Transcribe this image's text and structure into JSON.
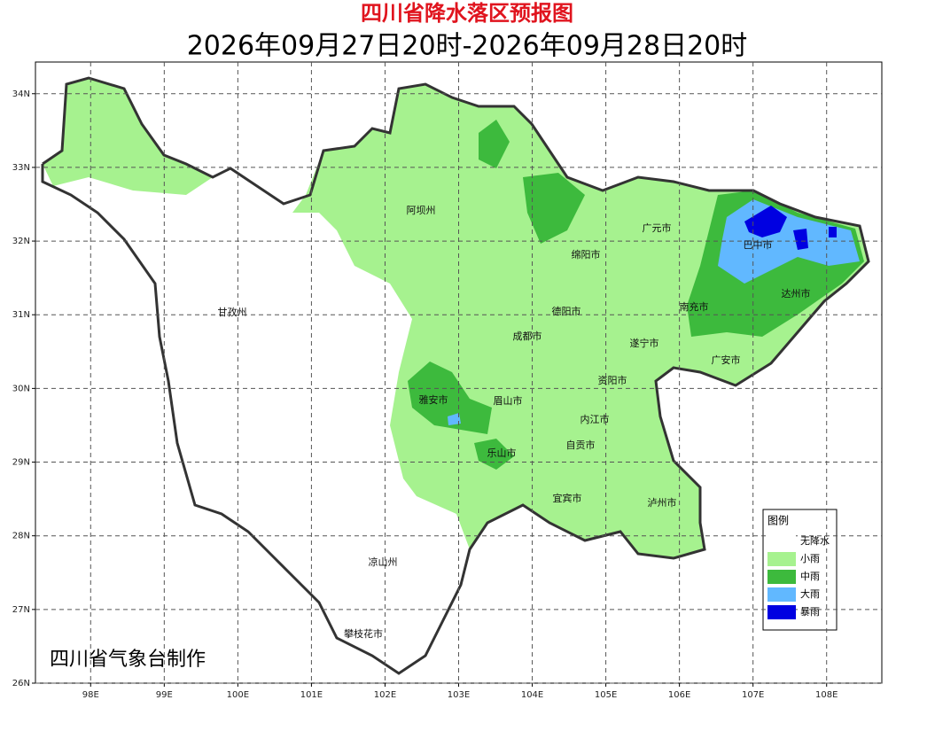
{
  "header": {
    "title": "四川省降水落区预报图",
    "subtitle": "2026年09月27日20时-2026年09月28日20时"
  },
  "map": {
    "xlim": [
      97.25,
      108.75
    ],
    "ylim": [
      26,
      34.43
    ],
    "xticks": [
      {
        "value": 98,
        "label": "98E"
      },
      {
        "value": 99,
        "label": "99E"
      },
      {
        "value": 100,
        "label": "100E"
      },
      {
        "value": 101,
        "label": "101E"
      },
      {
        "value": 102,
        "label": "102E"
      },
      {
        "value": 103,
        "label": "103E"
      },
      {
        "value": 104,
        "label": "104E"
      },
      {
        "value": 105,
        "label": "105E"
      },
      {
        "value": 106,
        "label": "106E"
      },
      {
        "value": 107,
        "label": "107E"
      },
      {
        "value": 108,
        "label": "108E"
      }
    ],
    "yticks": [
      {
        "value": 26,
        "label": "26N"
      },
      {
        "value": 27,
        "label": "27N"
      },
      {
        "value": 28,
        "label": "28N"
      },
      {
        "value": 29,
        "label": "29N"
      },
      {
        "value": 30,
        "label": "30N"
      },
      {
        "value": 31,
        "label": "31N"
      },
      {
        "value": 32,
        "label": "32N"
      },
      {
        "value": 33,
        "label": "33N"
      },
      {
        "value": 34,
        "label": "34N"
      }
    ],
    "grid": true,
    "cities": [
      "阿坝州",
      "广元市",
      "巴中市",
      "绵阳市",
      "甘孜州",
      "达州市",
      "德阳市",
      "南充市",
      "成都市",
      "遂宁市",
      "广安市",
      "资阳市",
      "雅安市",
      "眉山市",
      "内江市",
      "自贡市",
      "乐山市",
      "宜宾市",
      "泸州市",
      "凉山州",
      "攀枝花市"
    ],
    "credit": "四川省气象台制作"
  },
  "legend": {
    "title": "图例",
    "items": [
      {
        "label": "无降水",
        "color": "#ffffff"
      },
      {
        "label": "小雨",
        "color": "#a6f28f"
      },
      {
        "label": "中雨",
        "color": "#3dba3d"
      },
      {
        "label": "大雨",
        "color": "#61b8ff"
      },
      {
        "label": "暴雨",
        "color": "#0000e1"
      }
    ]
  }
}
